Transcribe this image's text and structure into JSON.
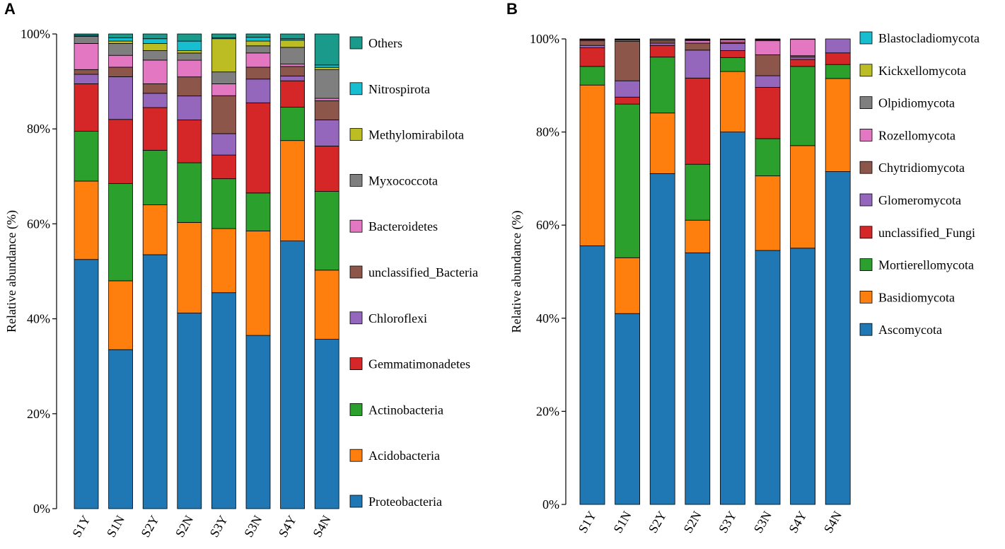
{
  "chart_data": [
    {
      "panel": "A",
      "type": "bar",
      "stacked": true,
      "ylabel": "Relative abundance (%)",
      "ylim": [
        0,
        100
      ],
      "yticks": [
        "0%",
        "20%",
        "40%",
        "60%",
        "80%",
        "100%"
      ],
      "categories": [
        "S1Y",
        "S1N",
        "S2Y",
        "S2N",
        "S3Y",
        "S3N",
        "S4Y",
        "S4N"
      ],
      "legend_position": "right",
      "series": [
        {
          "name": "Proteobacteria",
          "color": "#1f77b4",
          "values": [
            52.5,
            33.5,
            53.5,
            41.0,
            45.5,
            36.5,
            56.0,
            35.5
          ]
        },
        {
          "name": "Acidobacteria",
          "color": "#ff7f0e",
          "values": [
            16.5,
            14.5,
            10.5,
            19.0,
            13.5,
            22.0,
            21.0,
            14.5
          ]
        },
        {
          "name": "Actinobacteria",
          "color": "#2ca02c",
          "values": [
            10.5,
            20.5,
            11.5,
            12.5,
            10.5,
            8.0,
            7.0,
            16.5
          ]
        },
        {
          "name": "Gemmatimonadetes",
          "color": "#d62728",
          "values": [
            10.0,
            13.5,
            9.0,
            9.0,
            5.0,
            19.0,
            5.5,
            9.5
          ]
        },
        {
          "name": "Chloroflexi",
          "color": "#9467bd",
          "values": [
            2.0,
            9.0,
            3.0,
            5.0,
            4.5,
            5.0,
            1.0,
            5.5
          ]
        },
        {
          "name": "unclassified_Bacteria",
          "color": "#8c564b",
          "values": [
            1.0,
            2.0,
            2.0,
            4.0,
            8.0,
            2.5,
            2.0,
            4.0
          ]
        },
        {
          "name": "Bacteroidetes",
          "color": "#e377c2",
          "values": [
            5.5,
            2.5,
            5.0,
            3.5,
            2.5,
            3.0,
            0.5,
            0.5
          ]
        },
        {
          "name": "Myxococcota",
          "color": "#7f7f7f",
          "values": [
            1.5,
            2.5,
            2.0,
            1.5,
            2.5,
            1.5,
            3.5,
            6.0
          ]
        },
        {
          "name": "Methylomirabilota",
          "color": "#bcbd22",
          "values": [
            0.0,
            0.5,
            1.5,
            0.5,
            7.0,
            1.0,
            1.5,
            0.5
          ]
        },
        {
          "name": "Nitrospirota",
          "color": "#17becf",
          "values": [
            0.2,
            0.7,
            1.0,
            2.0,
            0.2,
            0.8,
            0.3,
            0.5
          ]
        },
        {
          "name": "Others",
          "color": "#1a9a8a",
          "values": [
            0.3,
            0.8,
            1.0,
            1.5,
            0.8,
            0.7,
            1.0,
            6.5
          ]
        }
      ]
    },
    {
      "panel": "B",
      "type": "bar",
      "stacked": true,
      "ylabel": "Relative abundance (%)",
      "ylim": [
        0,
        100
      ],
      "yticks": [
        "0%",
        "20%",
        "40%",
        "60%",
        "80%",
        "100%"
      ],
      "categories": [
        "S1Y",
        "S1N",
        "S2Y",
        "S2N",
        "S3Y",
        "S3N",
        "S4Y",
        "S4N"
      ],
      "legend_position": "right",
      "series": [
        {
          "name": "Ascomycota",
          "color": "#1f77b4",
          "values": [
            55.5,
            41.0,
            71.0,
            54.0,
            80.0,
            54.5,
            55.0,
            71.5
          ]
        },
        {
          "name": "Basidiomycota",
          "color": "#ff7f0e",
          "values": [
            34.5,
            12.0,
            13.0,
            7.0,
            13.0,
            16.0,
            22.0,
            20.0
          ]
        },
        {
          "name": "Mortierellomycota",
          "color": "#2ca02c",
          "values": [
            4.0,
            33.0,
            12.0,
            12.0,
            3.0,
            8.0,
            17.0,
            3.0
          ]
        },
        {
          "name": "unclassified_Fungi",
          "color": "#d62728",
          "values": [
            4.0,
            1.5,
            2.5,
            18.5,
            1.5,
            11.0,
            1.5,
            2.5
          ]
        },
        {
          "name": "Glomeromycota",
          "color": "#9467bd",
          "values": [
            0.5,
            3.5,
            0.5,
            6.0,
            1.5,
            2.5,
            0.5,
            3.0
          ]
        },
        {
          "name": "Chytridiomycota",
          "color": "#8c564b",
          "values": [
            1.0,
            8.5,
            0.5,
            1.5,
            0.3,
            4.5,
            0.3,
            0.0
          ]
        },
        {
          "name": "Rozellomycota",
          "color": "#e377c2",
          "values": [
            0.2,
            0.0,
            0.0,
            0.5,
            0.5,
            3.0,
            3.5,
            0.0
          ]
        },
        {
          "name": "Olpidiomycota",
          "color": "#7f7f7f",
          "values": [
            0.1,
            0.3,
            0.3,
            0.2,
            0.1,
            0.2,
            0.1,
            0.0
          ]
        },
        {
          "name": "Kickxellomycota",
          "color": "#bcbd22",
          "values": [
            0.1,
            0.1,
            0.1,
            0.1,
            0.1,
            0.1,
            0.0,
            0.0
          ]
        },
        {
          "name": "Blastocladiomycota",
          "color": "#17becf",
          "values": [
            0.0,
            0.1,
            0.0,
            0.1,
            0.0,
            0.1,
            0.0,
            0.0
          ]
        }
      ]
    }
  ]
}
